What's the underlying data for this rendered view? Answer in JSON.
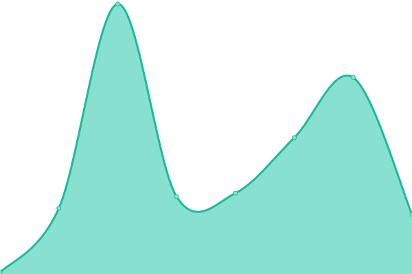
{
  "chart_data": {
    "type": "area",
    "title": "",
    "xlabel": "",
    "ylabel": "",
    "x": [
      0,
      1,
      2,
      3,
      4,
      5,
      6,
      7
    ],
    "values": [
      2,
      96,
      394,
      113,
      118,
      199,
      287,
      87
    ],
    "ylim": [
      0,
      400
    ],
    "grid": false,
    "legend": "none",
    "curve": "smooth",
    "colors": {
      "line": "#1abc9c",
      "fill": "#88e0d0",
      "point_fill": "#88e0d0"
    }
  }
}
